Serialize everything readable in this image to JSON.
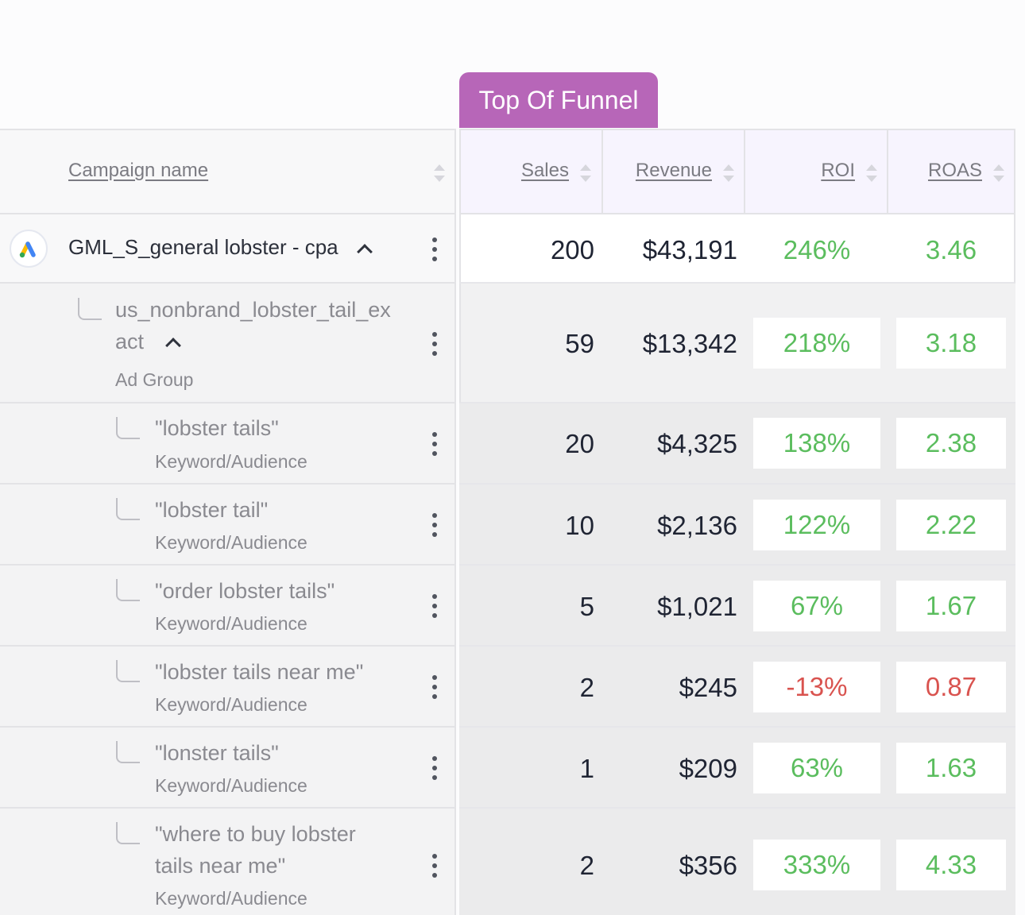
{
  "funnel_tab": "Top Of Funnel",
  "columns": {
    "campaign_name": "Campaign name",
    "sales": "Sales",
    "revenue": "Revenue",
    "roi": "ROI",
    "roas": "ROAS"
  },
  "colors": {
    "positive": "#5bbd5e",
    "negative": "#d9534f",
    "tab": "#b766b8"
  },
  "rows": [
    {
      "name": "GML_S_general lobster - cpa",
      "type": "",
      "sales": "200",
      "revenue": "$43,191",
      "roi": "246%",
      "roas": "3.46"
    },
    {
      "name_line1": "us_nonbrand_lobster_tail_ex",
      "name_line2": "act",
      "type": "Ad Group",
      "sales": "59",
      "revenue": "$13,342",
      "roi": "218%",
      "roas": "3.18"
    },
    {
      "name": "\"lobster tails\"",
      "type": "Keyword/Audience",
      "sales": "20",
      "revenue": "$4,325",
      "roi": "138%",
      "roas": "2.38"
    },
    {
      "name": "\"lobster tail\"",
      "type": "Keyword/Audience",
      "sales": "10",
      "revenue": "$2,136",
      "roi": "122%",
      "roas": "2.22"
    },
    {
      "name": "\"order lobster tails\"",
      "type": "Keyword/Audience",
      "sales": "5",
      "revenue": "$1,021",
      "roi": "67%",
      "roas": "1.67"
    },
    {
      "name": "\"lobster tails near me\"",
      "type": "Keyword/Audience",
      "sales": "2",
      "revenue": "$245",
      "roi": "-13%",
      "roas": "0.87"
    },
    {
      "name": "\"lonster tails\"",
      "type": "Keyword/Audience",
      "sales": "1",
      "revenue": "$209",
      "roi": "63%",
      "roas": "1.63"
    },
    {
      "name_line1": "\"where to buy lobster",
      "name_line2": "tails near me\"",
      "type": "Keyword/Audience",
      "sales": "2",
      "revenue": "$356",
      "roi": "333%",
      "roas": "4.33"
    }
  ]
}
